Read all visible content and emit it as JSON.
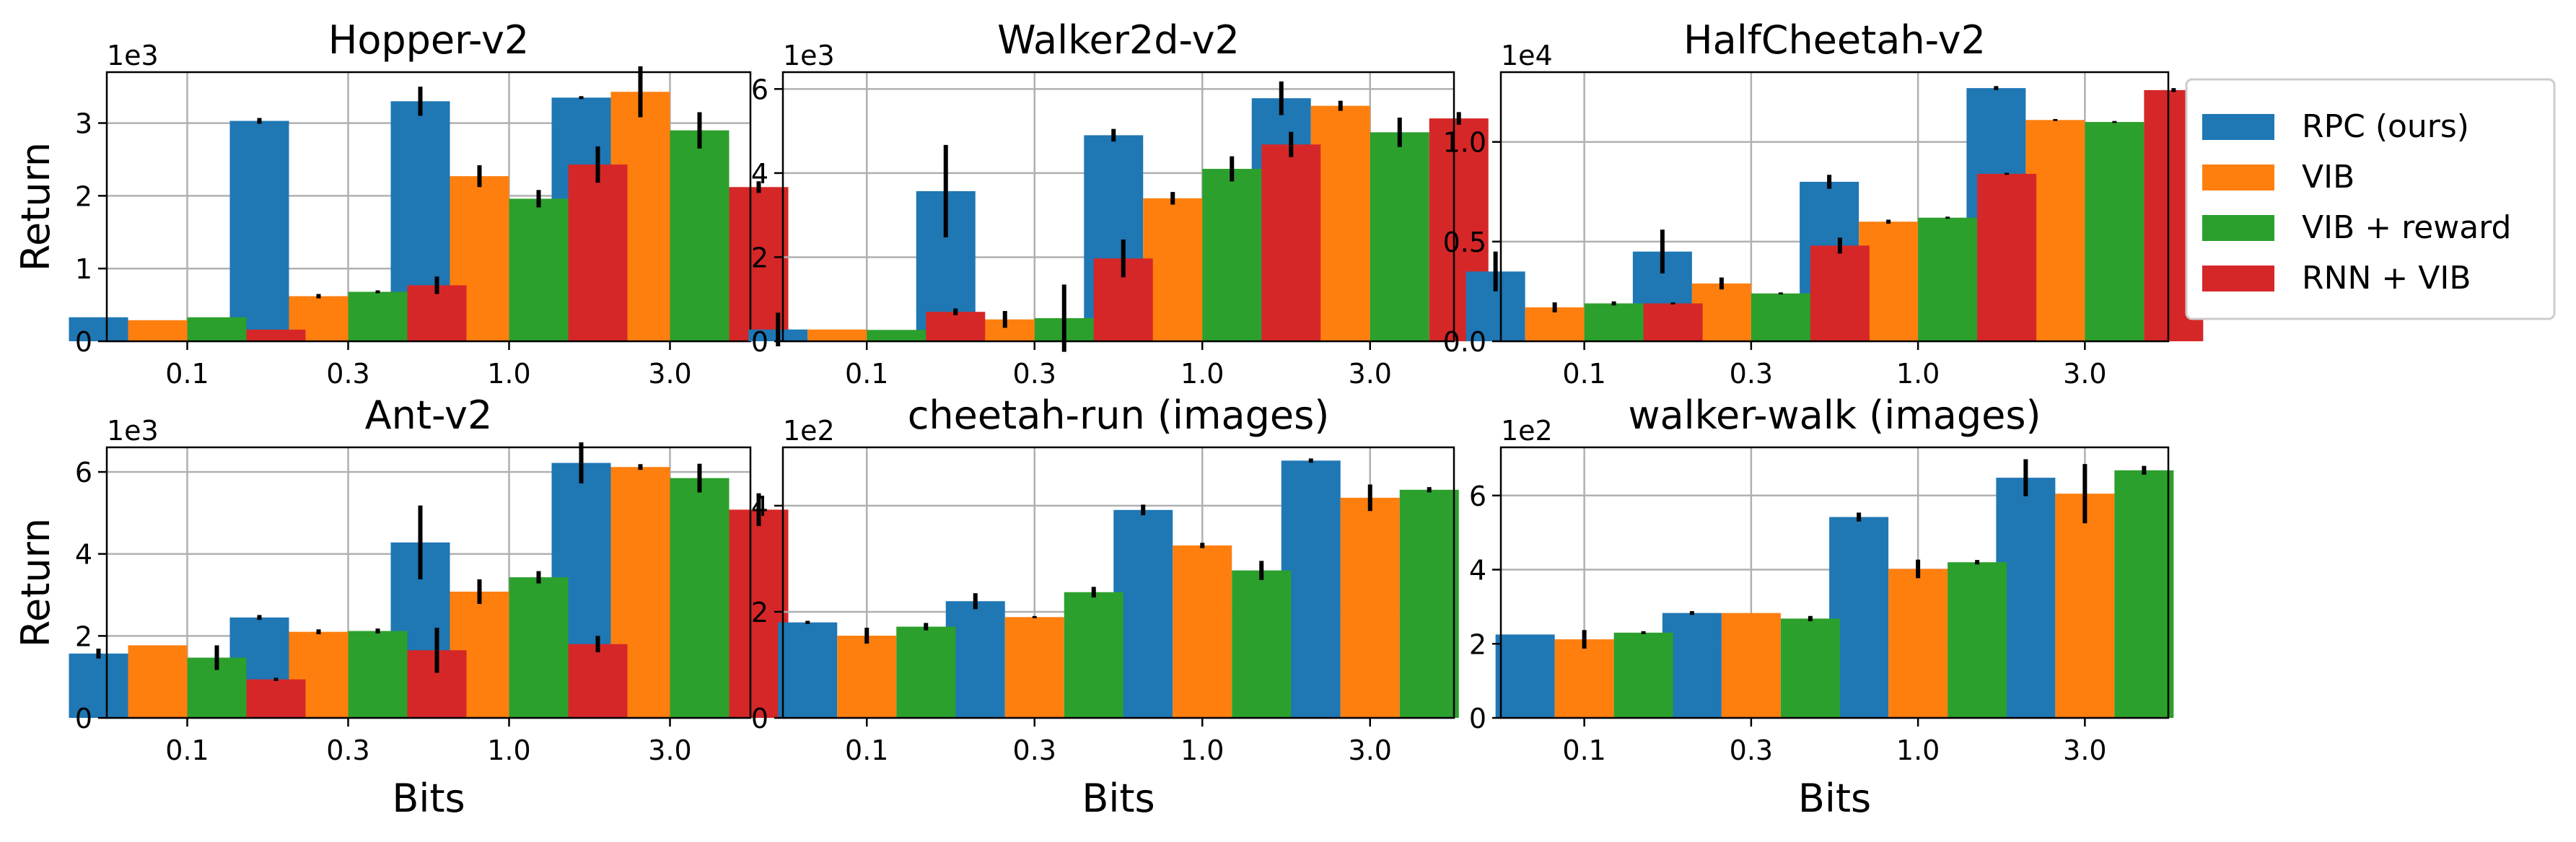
{
  "legend": {
    "placement": "right",
    "items": [
      {
        "label": "RPC (ours)",
        "color": "#1f77b4"
      },
      {
        "label": "VIB",
        "color": "#ff7f0e"
      },
      {
        "label": "VIB + reward",
        "color": "#2ca02c"
      },
      {
        "label": "RNN + VIB",
        "color": "#d62728"
      }
    ]
  },
  "chart_data": [
    {
      "type": "bar",
      "title": "Hopper-v2",
      "xlabel": "",
      "ylabel": "Return",
      "multiplier_label": "1e3",
      "categories": [
        "0.1",
        "0.3",
        "1.0",
        "3.0"
      ],
      "ylim": [
        0,
        3.7
      ],
      "yticks": [
        0,
        1,
        2,
        3
      ],
      "ytick_labels": [
        "0",
        "1",
        "2",
        "3"
      ],
      "grid": true,
      "series": [
        {
          "name": "RPC (ours)",
          "values": [
            0.33,
            3.03,
            3.3,
            3.35
          ],
          "errors": [
            0.0,
            0.04,
            0.2,
            0.02
          ]
        },
        {
          "name": "VIB",
          "values": [
            0.29,
            0.62,
            2.27,
            3.43
          ],
          "errors": [
            0.0,
            0.03,
            0.15,
            0.35
          ]
        },
        {
          "name": "VIB + reward",
          "values": [
            0.33,
            0.68,
            1.96,
            2.9
          ],
          "errors": [
            0.0,
            0.02,
            0.12,
            0.25
          ]
        },
        {
          "name": "RNN + VIB",
          "values": [
            0.16,
            0.77,
            2.43,
            2.12
          ],
          "errors": [
            0.0,
            0.12,
            0.25,
            0.08
          ]
        }
      ]
    },
    {
      "type": "bar",
      "title": "Walker2d-v2",
      "xlabel": "",
      "ylabel": "",
      "multiplier_label": "1e3",
      "categories": [
        "0.1",
        "0.3",
        "1.0",
        "3.0"
      ],
      "ylim": [
        0,
        6.4
      ],
      "yticks": [
        0,
        2,
        4,
        6
      ],
      "ytick_labels": [
        "0",
        "2",
        "4",
        "6"
      ],
      "grid": true,
      "series": [
        {
          "name": "RPC (ours)",
          "values": [
            0.28,
            3.57,
            4.9,
            5.78
          ],
          "errors": [
            0.4,
            1.1,
            0.15,
            0.4
          ]
        },
        {
          "name": "VIB",
          "values": [
            0.28,
            0.52,
            3.4,
            5.6
          ],
          "errors": [
            0.0,
            0.2,
            0.15,
            0.12
          ]
        },
        {
          "name": "VIB + reward",
          "values": [
            0.27,
            0.55,
            4.1,
            4.97
          ],
          "errors": [
            0.0,
            0.8,
            0.3,
            0.35
          ]
        },
        {
          "name": "RNN + VIB",
          "values": [
            0.7,
            1.97,
            4.68,
            5.3
          ],
          "errors": [
            0.08,
            0.45,
            0.3,
            0.15
          ]
        }
      ]
    },
    {
      "type": "bar",
      "title": "HalfCheetah-v2",
      "xlabel": "",
      "ylabel": "",
      "multiplier_label": "1e4",
      "categories": [
        "0.1",
        "0.3",
        "1.0",
        "3.0"
      ],
      "ylim": [
        0,
        1.35
      ],
      "yticks": [
        0,
        0.5,
        1.0
      ],
      "ytick_labels": [
        "0.0",
        "0.5",
        "1.0"
      ],
      "grid": true,
      "series": [
        {
          "name": "RPC (ours)",
          "values": [
            0.35,
            0.45,
            0.8,
            1.27
          ],
          "errors": [
            0.1,
            0.11,
            0.035,
            0.01
          ]
        },
        {
          "name": "VIB",
          "values": [
            0.17,
            0.29,
            0.6,
            1.11
          ],
          "errors": [
            0.025,
            0.03,
            0.01,
            0.005
          ]
        },
        {
          "name": "VIB + reward",
          "values": [
            0.19,
            0.24,
            0.62,
            1.1
          ],
          "errors": [
            0.01,
            0.005,
            0.005,
            0.005
          ]
        },
        {
          "name": "RNN + VIB",
          "values": [
            0.19,
            0.48,
            0.84,
            1.26
          ],
          "errors": [
            0.005,
            0.04,
            0.005,
            0.01
          ]
        }
      ]
    },
    {
      "type": "bar",
      "title": "Ant-v2",
      "xlabel": "Bits",
      "ylabel": "Return",
      "multiplier_label": "1e3",
      "categories": [
        "0.1",
        "0.3",
        "1.0",
        "3.0"
      ],
      "ylim": [
        0,
        6.6
      ],
      "yticks": [
        0,
        2,
        4,
        6
      ],
      "ytick_labels": [
        "0",
        "2",
        "4",
        "6"
      ],
      "grid": true,
      "series": [
        {
          "name": "RPC (ours)",
          "values": [
            1.57,
            2.45,
            4.28,
            6.22
          ],
          "errors": [
            0.12,
            0.06,
            0.9,
            0.5
          ]
        },
        {
          "name": "VIB",
          "values": [
            1.77,
            2.1,
            3.08,
            6.12
          ],
          "errors": [
            0.0,
            0.06,
            0.3,
            0.07
          ]
        },
        {
          "name": "VIB + reward",
          "values": [
            1.47,
            2.12,
            3.43,
            5.85
          ],
          "errors": [
            0.3,
            0.06,
            0.15,
            0.35
          ]
        },
        {
          "name": "RNN + VIB",
          "values": [
            0.94,
            1.65,
            1.8,
            5.08
          ],
          "errors": [
            0.04,
            0.55,
            0.2,
            0.4
          ]
        }
      ]
    },
    {
      "type": "bar",
      "title": "cheetah-run (images)",
      "xlabel": "Bits",
      "ylabel": "",
      "multiplier_label": "1e2",
      "categories": [
        "0.1",
        "0.3",
        "1.0",
        "3.0"
      ],
      "ylim": [
        0,
        5.1
      ],
      "yticks": [
        0,
        2,
        4
      ],
      "ytick_labels": [
        "0",
        "2",
        "4"
      ],
      "grid": true,
      "series": [
        {
          "name": "RPC (ours)",
          "values": [
            1.8,
            2.2,
            3.92,
            4.85
          ],
          "errors": [
            0.03,
            0.15,
            0.1,
            0.04
          ]
        },
        {
          "name": "VIB",
          "values": [
            1.55,
            1.9,
            3.25,
            4.15
          ],
          "errors": [
            0.15,
            0.02,
            0.05,
            0.25
          ]
        },
        {
          "name": "VIB + reward",
          "values": [
            1.72,
            2.37,
            2.78,
            4.3
          ],
          "errors": [
            0.07,
            0.1,
            0.18,
            0.05
          ]
        }
      ]
    },
    {
      "type": "bar",
      "title": "walker-walk (images)",
      "xlabel": "Bits",
      "ylabel": "",
      "multiplier_label": "1e2",
      "categories": [
        "0.1",
        "0.3",
        "1.0",
        "3.0"
      ],
      "ylim": [
        0,
        7.3
      ],
      "yticks": [
        0,
        2,
        4,
        6
      ],
      "ytick_labels": [
        "0",
        "2",
        "4",
        "6"
      ],
      "grid": true,
      "series": [
        {
          "name": "RPC (ours)",
          "values": [
            2.25,
            2.83,
            5.42,
            6.48
          ],
          "errors": [
            0.0,
            0.05,
            0.12,
            0.5
          ]
        },
        {
          "name": "VIB",
          "values": [
            2.12,
            2.83,
            4.02,
            6.05
          ],
          "errors": [
            0.25,
            0.0,
            0.25,
            0.8
          ]
        },
        {
          "name": "VIB + reward",
          "values": [
            2.3,
            2.68,
            4.2,
            6.68
          ],
          "errors": [
            0.04,
            0.07,
            0.06,
            0.12
          ]
        }
      ]
    }
  ]
}
